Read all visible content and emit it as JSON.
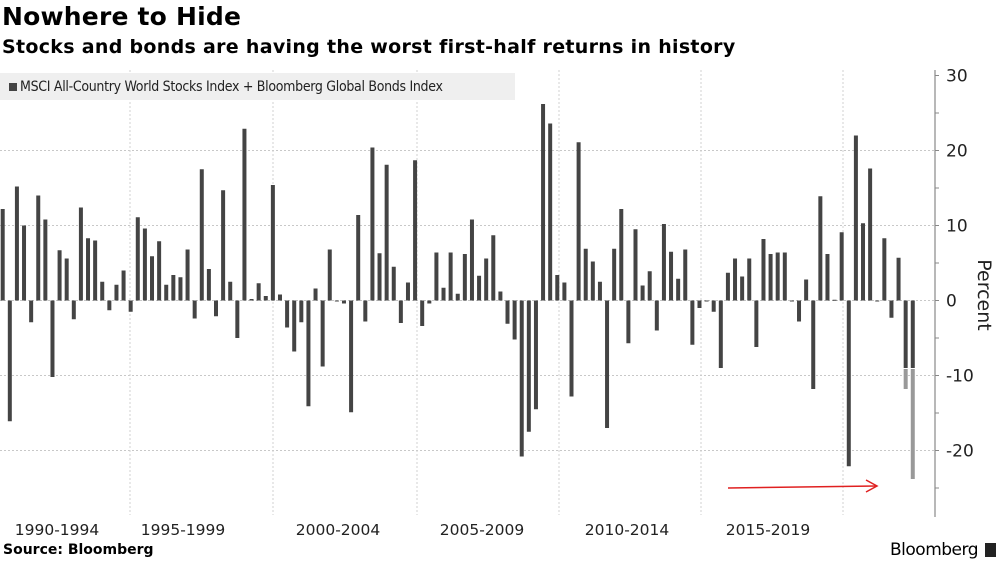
{
  "header": {
    "title": "Nowhere to Hide",
    "subtitle": "Stocks and bonds are having the worst first-half returns in history"
  },
  "footer": {
    "source": "Source: Bloomberg",
    "brand": "Bloomberg",
    "brand_icon": "bloomberg-logo-icon"
  },
  "chart_data": {
    "type": "bar",
    "title": "Nowhere to Hide",
    "subtitle": "Stocks and bonds are having the worst first-half returns in history",
    "ylabel": "Percent",
    "xlabel": "",
    "ylim": [
      -27,
      31
    ],
    "y_ticks": [
      30,
      20,
      10,
      0,
      -10,
      -20
    ],
    "x_tick_labels": [
      "1990-1994",
      "1995-1999",
      "2000-2004",
      "2005-2009",
      "2010-2014",
      "2015-2019"
    ],
    "grid": true,
    "legend_position": "top-left",
    "colors": {
      "bar": "#444444",
      "highlight": "#999999",
      "arrow": "#e02020"
    },
    "series": [
      {
        "name": "MSCI All-Country World Stocks Index + Bloomberg Global Bonds Index",
        "values": [
          12.2,
          -16.1,
          15.2,
          10.0,
          -2.9,
          14.0,
          10.8,
          -10.2,
          6.7,
          5.6,
          -2.5,
          12.4,
          8.3,
          8.0,
          2.5,
          -1.3,
          2.1,
          4.0,
          -1.5,
          11.1,
          9.6,
          5.9,
          7.9,
          2.1,
          3.4,
          3.1,
          6.8,
          -2.4,
          17.5,
          4.2,
          -2.1,
          14.7,
          2.5,
          -5.0,
          22.9,
          0.2,
          2.3,
          0.6,
          15.4,
          0.8,
          -3.6,
          -6.8,
          -2.9,
          -14.1,
          1.6,
          -8.8,
          6.8,
          -0.1,
          -0.4,
          -14.9,
          11.4,
          -2.8,
          20.4,
          6.3,
          18.1,
          4.5,
          -3.0,
          2.4,
          18.7,
          -3.4,
          -0.4,
          6.4,
          1.7,
          6.4,
          0.9,
          6.2,
          10.8,
          3.3,
          5.6,
          8.7,
          1.2,
          -3.1,
          -5.2,
          -20.8,
          -17.5,
          -14.5,
          26.2,
          23.6,
          3.4,
          2.4,
          -12.8,
          21.1,
          6.9,
          5.2,
          2.5,
          -17.0,
          6.9,
          12.2,
          -5.7,
          9.5,
          2.0,
          3.9,
          -4.0,
          10.2,
          6.5,
          2.9,
          6.8,
          -5.9,
          -1.0,
          -0.1,
          -1.5,
          -9.0,
          3.7,
          5.6,
          3.2,
          5.6,
          -6.2,
          8.2,
          6.2,
          6.4,
          6.4,
          -0.1,
          -2.8,
          2.8,
          -11.8,
          13.9,
          6.2,
          0.1,
          9.1,
          -22.1,
          22.0,
          10.3,
          17.6,
          -0.1,
          8.3,
          -2.3,
          5.7,
          -11.8,
          -23.8
        ]
      }
    ],
    "partial_highlight": {
      "indices": [
        127,
        128
      ],
      "dark_to": -9.0
    },
    "annotation": "red arrow pointing to latest bar"
  }
}
